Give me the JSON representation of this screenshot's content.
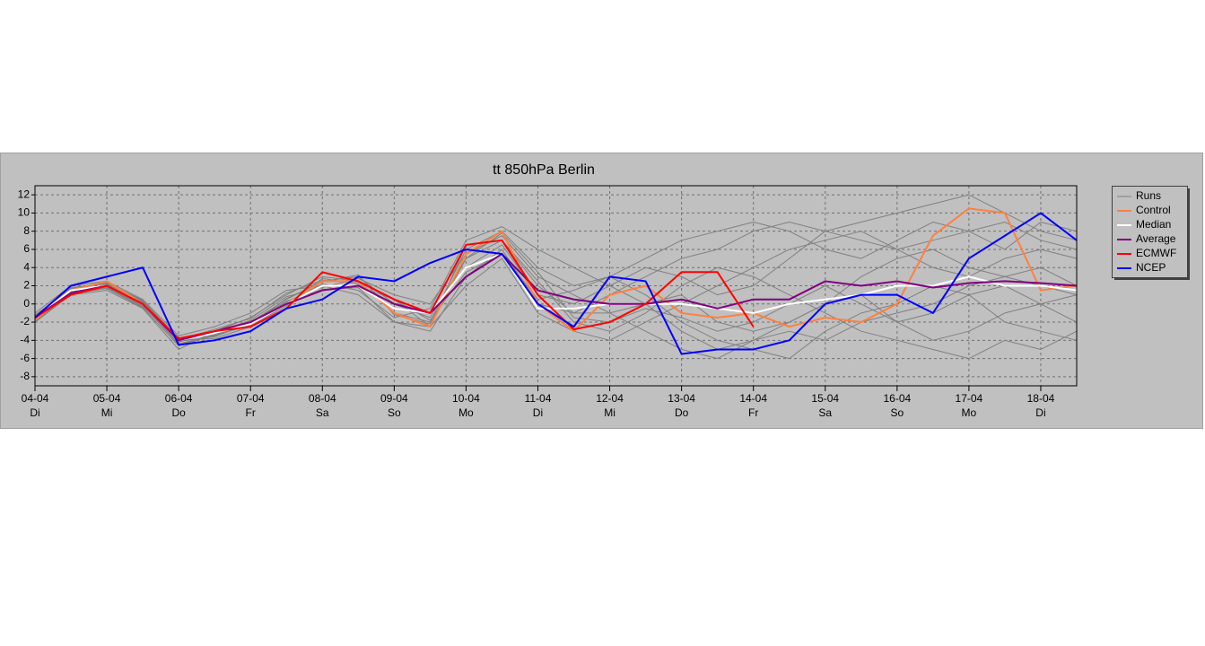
{
  "chart_data": {
    "type": "line",
    "title": "tt 850hPa Berlin",
    "x": [
      0,
      0.5,
      1,
      1.5,
      2,
      2.5,
      3,
      3.5,
      4,
      4.5,
      5,
      5.5,
      6,
      6.5,
      7,
      7.5,
      8,
      8.5,
      9,
      9.5,
      10,
      10.5,
      11,
      11.5,
      12,
      12.5,
      13,
      13.5,
      14,
      14.5
    ],
    "xlim": [
      0,
      14.5
    ],
    "xticks": [
      {
        "value": 0,
        "label": "04-04"
      },
      {
        "value": 1,
        "label": "05-04"
      },
      {
        "value": 2,
        "label": "06-04"
      },
      {
        "value": 3,
        "label": "07-04"
      },
      {
        "value": 4,
        "label": "08-04"
      },
      {
        "value": 5,
        "label": "09-04"
      },
      {
        "value": 6,
        "label": "10-04"
      },
      {
        "value": 7,
        "label": "11-04"
      },
      {
        "value": 8,
        "label": "12-04"
      },
      {
        "value": 9,
        "label": "13-04"
      },
      {
        "value": 10,
        "label": "14-04"
      },
      {
        "value": 11,
        "label": "15-04"
      },
      {
        "value": 12,
        "label": "16-04"
      },
      {
        "value": 13,
        "label": "17-04"
      },
      {
        "value": 14,
        "label": "18-04"
      }
    ],
    "xtick_weekdays": [
      "Di",
      "Mi",
      "Do",
      "Fr",
      "Sa",
      "So",
      "Mo",
      "Di",
      "Mi",
      "Do",
      "Fr",
      "Sa",
      "So",
      "Mo",
      "Di"
    ],
    "ylim": [
      -9,
      13
    ],
    "yticks": [
      -8,
      -6,
      -4,
      -2,
      0,
      2,
      4,
      6,
      8,
      10,
      12
    ],
    "grid": true,
    "legend": "right",
    "series": [
      {
        "name": "Runs",
        "color": "#808080",
        "runs": [
          [
            -1.5,
            1.8,
            2.2,
            0.2,
            -4.5,
            -3.5,
            -2,
            0.5,
            2.5,
            3,
            0,
            -1.5,
            5,
            7,
            2,
            -1,
            -1,
            0,
            1,
            -2,
            -3,
            -2,
            0,
            3,
            5,
            6,
            4,
            3,
            2,
            1
          ],
          [
            -2,
            1,
            1.5,
            -0.5,
            -5,
            -3,
            -1.5,
            1,
            3,
            2.5,
            -1,
            -2,
            6,
            8,
            4,
            2,
            3,
            1,
            -2,
            -4,
            -5,
            -6,
            -3,
            -1,
            0,
            2,
            1,
            -2,
            -3,
            -4
          ],
          [
            -1,
            2,
            2.5,
            0.5,
            -3.5,
            -2.5,
            -1,
            1.5,
            2,
            1,
            -2,
            -3,
            3,
            6,
            0,
            -1,
            1,
            3,
            5,
            6,
            8,
            9,
            8,
            7,
            6,
            7,
            8,
            9,
            7,
            6
          ],
          [
            -1.8,
            1.2,
            1.8,
            -0.3,
            -4,
            -3.8,
            -2.5,
            0,
            1.5,
            2,
            0.5,
            -2.5,
            2,
            5,
            -1,
            -3,
            -4,
            -2,
            0,
            2,
            4,
            6,
            7,
            8,
            6,
            4,
            3,
            5,
            6,
            5
          ],
          [
            -1.2,
            1.5,
            2,
            0,
            -4.2,
            -3,
            -2.2,
            0.2,
            2.2,
            1.5,
            -1.5,
            -0.5,
            7,
            8.5,
            6,
            4,
            2,
            0,
            -3,
            -5,
            -4,
            -2,
            0,
            1,
            -2,
            -4,
            -3,
            -1,
            0,
            -2
          ],
          [
            -1.6,
            1.6,
            2.3,
            0.4,
            -3.8,
            -3.2,
            -1.8,
            0.8,
            1.8,
            2.8,
            1,
            0,
            5.5,
            7.5,
            3,
            1,
            -1,
            -3,
            -5,
            -6,
            -4,
            -3,
            -4,
            -2,
            -1,
            0,
            2,
            3,
            4,
            2
          ],
          [
            -1.4,
            1.4,
            1.9,
            -0.2,
            -4.4,
            -3.4,
            -2.4,
            -0.2,
            2.8,
            2.2,
            -0.5,
            -1,
            4,
            6.5,
            1,
            0,
            2,
            4,
            3,
            1,
            2,
            5,
            8,
            9,
            10,
            11,
            12,
            10,
            8,
            7
          ],
          [
            -1.7,
            1.3,
            2.1,
            0.1,
            -4.1,
            -3.6,
            -2.1,
            0.3,
            1.6,
            1.8,
            -2,
            -2.5,
            6.5,
            7,
            2.5,
            -2,
            -3,
            -1,
            2,
            4,
            3,
            1,
            -1,
            -3,
            -4,
            -5,
            -6,
            -4,
            -5,
            -3
          ],
          [
            -1.3,
            1.7,
            2.4,
            0.3,
            -3.9,
            -2.8,
            -1.6,
            1.2,
            2.6,
            2.4,
            0.5,
            -1.8,
            3.5,
            5.5,
            0.5,
            1.5,
            3,
            5,
            7,
            8,
            9,
            8,
            6,
            5,
            7,
            9,
            8,
            6,
            9,
            8
          ],
          [
            -1.9,
            1.1,
            1.7,
            -0.4,
            -4.6,
            -3.3,
            -2.3,
            0.6,
            2.4,
            3.2,
            -1.2,
            -2.2,
            5,
            7.8,
            3.5,
            -1.5,
            -2,
            -0.5,
            -1.5,
            -3,
            -2,
            0,
            2,
            0,
            -2,
            -1,
            1,
            2,
            0,
            1
          ]
        ]
      },
      {
        "name": "Control",
        "color": "#ff8040",
        "values": [
          -1.8,
          1.5,
          2.5,
          0,
          -4,
          -3,
          -2,
          0,
          2.5,
          2.5,
          -1,
          -2.5,
          5.5,
          8,
          0,
          -3,
          1,
          2,
          -1,
          -1.5,
          -1,
          -2.5,
          -1.5,
          -2,
          0,
          7.5,
          10.5,
          10,
          1.5,
          2
        ]
      },
      {
        "name": "Median",
        "color": "#ffffff",
        "values": [
          -1.5,
          1.5,
          2,
          0,
          -4,
          -3.2,
          -2.2,
          0,
          2,
          2,
          -0.5,
          -1,
          4,
          5.5,
          -0.5,
          -0.5,
          0,
          0,
          0,
          -0.5,
          -1,
          0,
          0.5,
          1,
          2,
          2,
          3,
          2,
          2,
          1.5
        ]
      },
      {
        "name": "Average",
        "color": "#800080",
        "values": [
          -1.5,
          1.2,
          2,
          0,
          -4,
          -3,
          -2,
          0,
          1.5,
          2,
          0,
          -1,
          3,
          5.5,
          1.5,
          0.5,
          0,
          0,
          0.5,
          -0.5,
          0.5,
          0.5,
          2.5,
          2,
          2.5,
          1.8,
          2.3,
          2.5,
          2.3,
          2
        ]
      },
      {
        "name": "ECMWF",
        "color": "#ff0000",
        "values": [
          -1.5,
          1,
          2,
          0,
          -3.8,
          -3,
          -2.5,
          -0.5,
          3.5,
          2.5,
          0.5,
          -1,
          6.5,
          7,
          1,
          -2.8,
          -2,
          0,
          3.5,
          3.5,
          -2.5,
          null,
          null,
          null,
          null,
          null,
          null,
          null,
          null,
          null
        ]
      },
      {
        "name": "NCEP",
        "color": "#0000ff",
        "values": [
          -1.5,
          2,
          3,
          4,
          -4.5,
          -4,
          -3,
          -0.5,
          0.5,
          3,
          2.5,
          4.5,
          6,
          5.5,
          0,
          -2.5,
          3,
          2.5,
          -5.5,
          -5,
          -5,
          -4,
          0,
          1,
          1,
          -1,
          5,
          7.5,
          10,
          7
        ]
      }
    ]
  }
}
